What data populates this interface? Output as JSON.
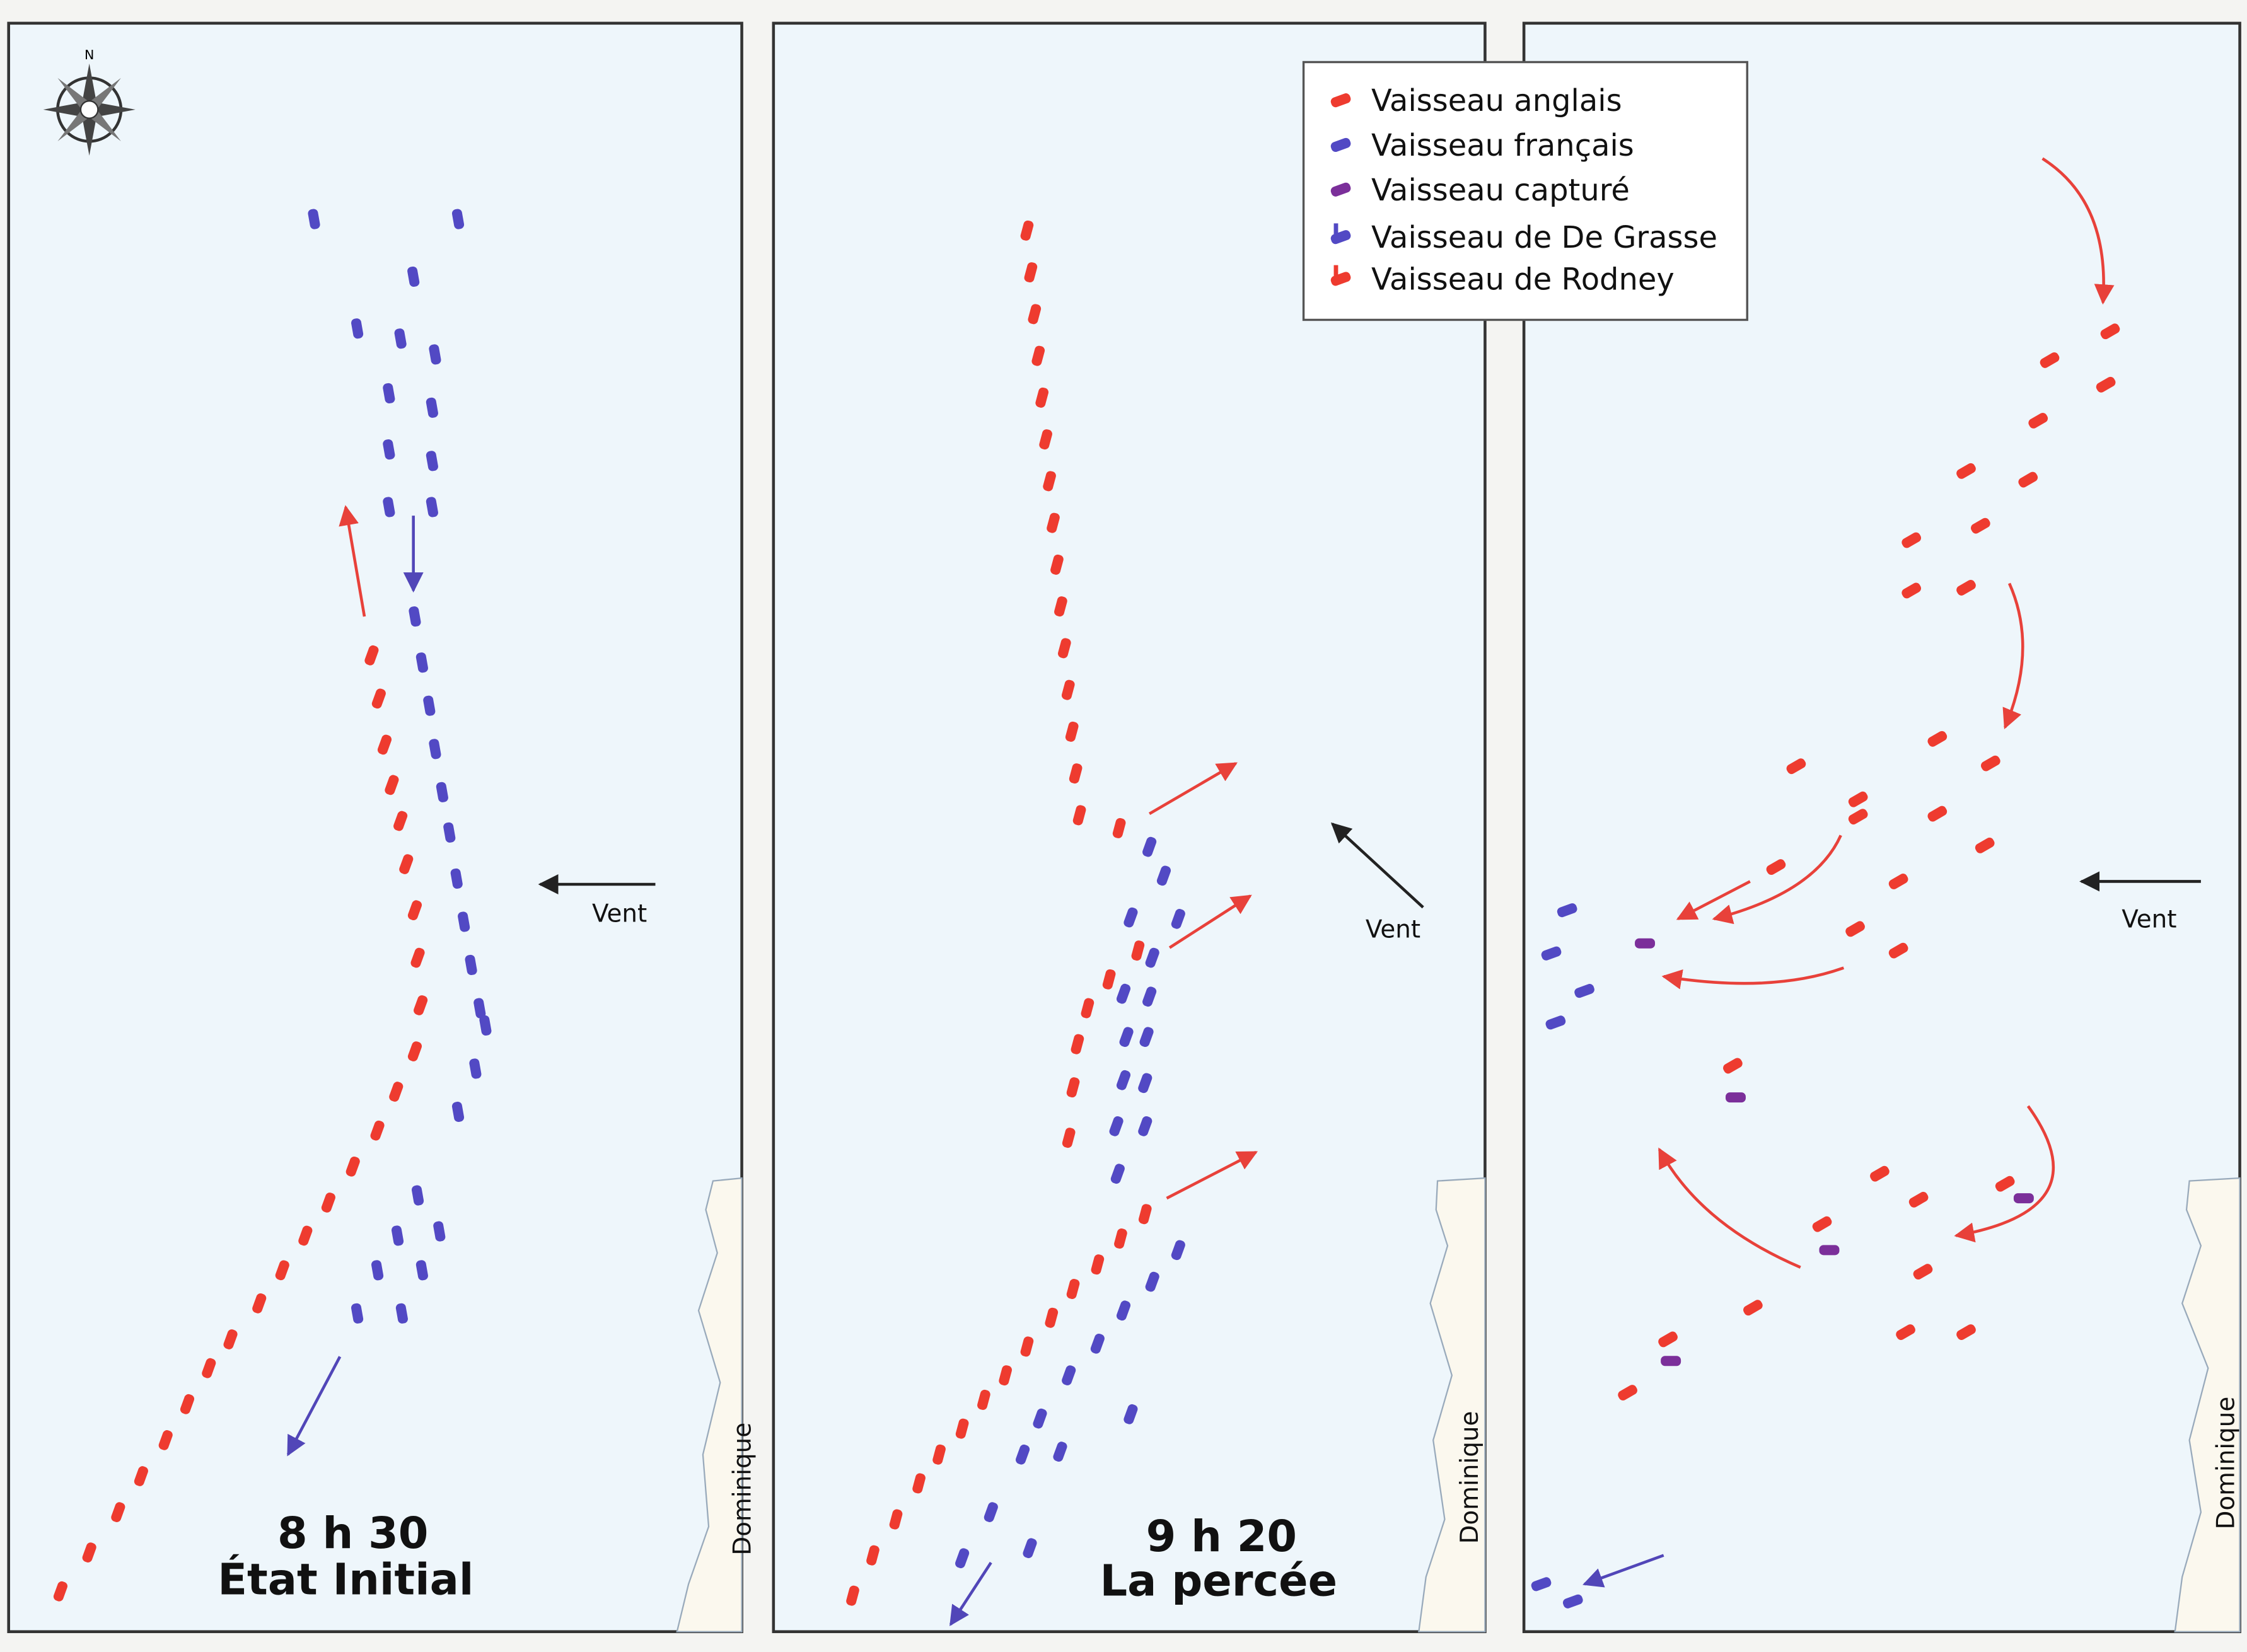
{
  "compass": {
    "north": "N"
  },
  "legend": {
    "items": [
      "Vaisseau anglais",
      "Vaisseau français",
      "Vaisseau capturé",
      "Vaisseau de De Grasse",
      "Vaisseau de Rodney"
    ]
  },
  "panels": [
    {
      "time": "8 h 30",
      "caption": "État Initial",
      "wind": "Vent",
      "island": "Dominique"
    },
    {
      "time": "9 h 20",
      "caption": "La percée",
      "wind": "Vent",
      "island": "Dominique"
    },
    {
      "wind": "Vent",
      "island": "Dominique"
    }
  ]
}
